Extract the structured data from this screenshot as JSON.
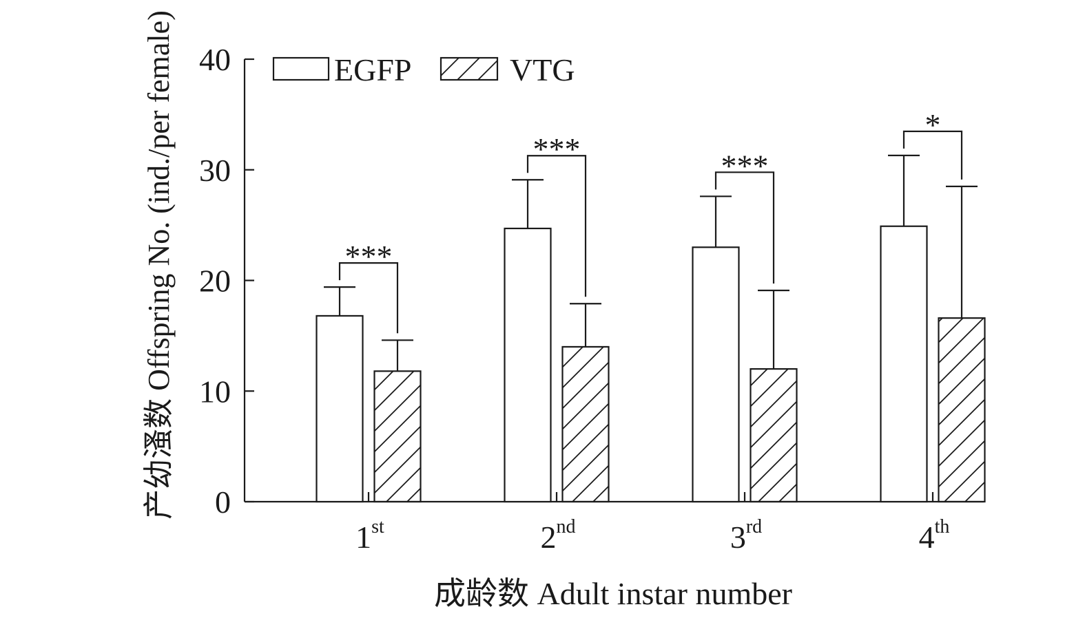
{
  "chart_data": {
    "type": "bar",
    "xlabel": "成龄数 Adult instar number",
    "ylabel": "产幼溞数 Offspring No. (ind./per female)",
    "ylim": [
      0,
      40
    ],
    "yticks": [
      "0",
      "10",
      "20",
      "30",
      "40"
    ],
    "categories": [
      {
        "base": "1",
        "sup": "st"
      },
      {
        "base": "2",
        "sup": "nd"
      },
      {
        "base": "3",
        "sup": "rd"
      },
      {
        "base": "4",
        "sup": "th"
      }
    ],
    "series": [
      {
        "name": "EGFP",
        "fill": "none",
        "values": [
          16.8,
          24.7,
          23.0,
          24.9
        ],
        "errors": [
          2.6,
          4.4,
          4.6,
          6.4
        ]
      },
      {
        "name": "VTG",
        "fill": "hatch",
        "values": [
          11.8,
          14.0,
          12.0,
          16.6
        ],
        "errors": [
          2.8,
          3.9,
          7.1,
          11.9
        ]
      }
    ],
    "significance": [
      "***",
      "***",
      "***",
      "*"
    ],
    "legend_position": "top-left",
    "grid": false,
    "colors": {
      "line": "#1a1a1a",
      "background": "#ffffff"
    }
  }
}
